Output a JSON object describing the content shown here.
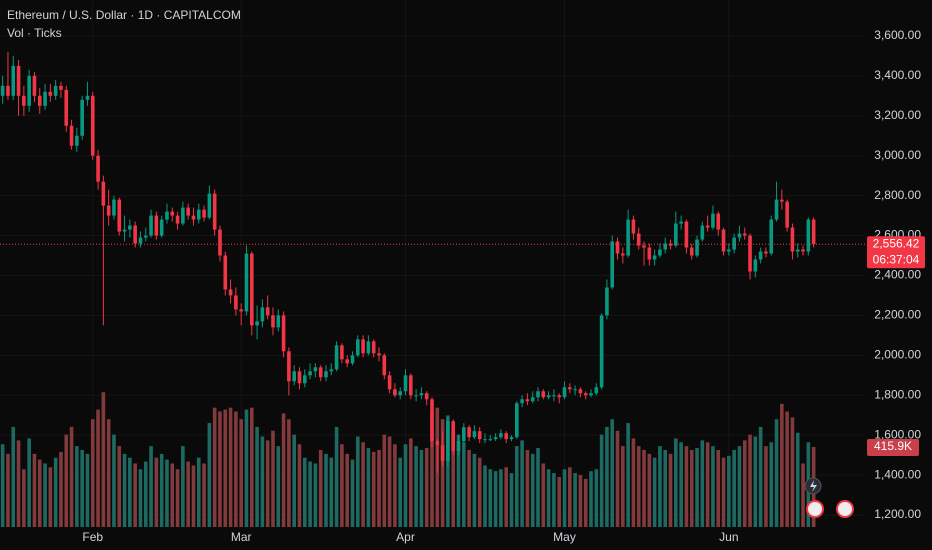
{
  "chart_data": {
    "type": "candlestick",
    "title": "Ethereum / U.S. Dollar · 1D · CAPITALCOM",
    "subtitle": "Vol · Ticks",
    "up_color": "#089981",
    "down_color": "#f23645",
    "volume_up_color": "#1d6a62",
    "volume_down_color": "#833a3c",
    "xlim": [
      -0.5,
      162.5
    ],
    "xticks": [
      {
        "value": 17,
        "label": "Feb"
      },
      {
        "value": 45,
        "label": "Mar"
      },
      {
        "value": 76,
        "label": "Apr"
      },
      {
        "value": 106,
        "label": "May"
      },
      {
        "value": 137,
        "label": "Jun"
      }
    ],
    "ylim": [
      1140,
      3780
    ],
    "yticks": [
      {
        "value": 1200,
        "label": "1,200.00"
      },
      {
        "value": 1400,
        "label": "1,400.00"
      },
      {
        "value": 1600,
        "label": "1,600.00"
      },
      {
        "value": 1800,
        "label": "1,800.00"
      },
      {
        "value": 2000,
        "label": "2,000.00"
      },
      {
        "value": 2200,
        "label": "2,200.00"
      },
      {
        "value": 2400,
        "label": "2,400.00"
      },
      {
        "value": 2600,
        "label": "2,600.00"
      },
      {
        "value": 2800,
        "label": "2,800.00"
      },
      {
        "value": 3000,
        "label": "3,000.00"
      },
      {
        "value": 3200,
        "label": "3,200.00"
      },
      {
        "value": 3400,
        "label": "3,400.00"
      },
      {
        "value": 3600,
        "label": "3,600.00"
      }
    ],
    "grid": true,
    "open": [
      3300,
      3350,
      3300,
      3450,
      3300,
      3250,
      3400,
      3300,
      3250,
      3320,
      3300,
      3350,
      3330,
      3150,
      3050,
      3100,
      3280,
      3300,
      3000,
      2870,
      2750,
      2700,
      2780,
      2620,
      2630,
      2650,
      2560,
      2590,
      2600,
      2700,
      2600,
      2680,
      2720,
      2700,
      2660,
      2740,
      2700,
      2680,
      2730,
      2690,
      2810,
      2630,
      2500,
      2330,
      2300,
      2230,
      2220,
      2510,
      2150,
      2170,
      2240,
      2200,
      2140,
      2200,
      2020,
      1870,
      1920,
      1860,
      1900,
      1920,
      1940,
      1890,
      1920,
      1930,
      2050,
      1980,
      1960,
      2000,
      2080,
      2010,
      2070,
      2010,
      2000,
      1900,
      1830,
      1800,
      1820,
      1900,
      1800,
      1800,
      1810,
      1780,
      1570,
      1550,
      1470,
      1670,
      1520,
      1570,
      1640,
      1590,
      1620,
      1580,
      1580,
      1580,
      1590,
      1610,
      1580,
      1590,
      1760,
      1780,
      1770,
      1790,
      1820,
      1790,
      1800,
      1800,
      1790,
      1840,
      1830,
      1830,
      1810,
      1800,
      1810,
      1840,
      2200,
      2340,
      2570,
      2510,
      2500,
      2680,
      2610,
      2550,
      2540,
      2480,
      2500,
      2530,
      2560,
      2550,
      2660,
      2670,
      2540,
      2500,
      2580,
      2650,
      2640,
      2710,
      2630,
      2520,
      2530,
      2590,
      2610,
      2600,
      2420,
      2480,
      2520,
      2510,
      2680,
      2780,
      2770,
      2640,
      2520,
      2530,
      2520,
      2680
    ],
    "high": [
      3400,
      3520,
      3500,
      3480,
      3350,
      3430,
      3420,
      3340,
      3360,
      3360,
      3380,
      3370,
      3350,
      3180,
      3140,
      3300,
      3370,
      3320,
      3030,
      2900,
      2830,
      2800,
      2790,
      2700,
      2680,
      2670,
      2620,
      2640,
      2730,
      2720,
      2700,
      2760,
      2740,
      2720,
      2770,
      2760,
      2740,
      2760,
      2750,
      2850,
      2830,
      2650,
      2520,
      2380,
      2340,
      2260,
      2550,
      2520,
      2250,
      2280,
      2300,
      2240,
      2230,
      2220,
      2040,
      1950,
      1940,
      1930,
      1960,
      1960,
      1950,
      1950,
      1960,
      2070,
      2060,
      2000,
      2020,
      2100,
      2100,
      2100,
      2080,
      2040,
      2010,
      1920,
      1860,
      1840,
      1930,
      1910,
      1830,
      1840,
      1820,
      1790,
      1580,
      1620,
      1690,
      1680,
      1600,
      1660,
      1650,
      1650,
      1640,
      1610,
      1600,
      1610,
      1630,
      1620,
      1600,
      1770,
      1800,
      1810,
      1820,
      1840,
      1830,
      1820,
      1830,
      1810,
      1870,
      1860,
      1850,
      1840,
      1820,
      1830,
      1860,
      2210,
      2380,
      2600,
      2590,
      2540,
      2730,
      2700,
      2640,
      2570,
      2560,
      2530,
      2560,
      2590,
      2580,
      2720,
      2700,
      2680,
      2560,
      2600,
      2670,
      2700,
      2750,
      2720,
      2640,
      2560,
      2610,
      2650,
      2640,
      2610,
      2500,
      2540,
      2540,
      2700,
      2870,
      2830,
      2780,
      2660,
      2560,
      2550,
      2690,
      2690
    ],
    "low": [
      3260,
      3280,
      3280,
      3200,
      3200,
      3220,
      3270,
      3210,
      3230,
      3270,
      3280,
      3290,
      3120,
      3030,
      3020,
      3080,
      3250,
      2980,
      2830,
      2150,
      2650,
      2680,
      2600,
      2570,
      2590,
      2540,
      2540,
      2570,
      2590,
      2580,
      2590,
      2660,
      2670,
      2630,
      2650,
      2680,
      2650,
      2660,
      2670,
      2680,
      2600,
      2470,
      2300,
      2260,
      2200,
      2150,
      2200,
      2100,
      2080,
      2140,
      2180,
      2100,
      2120,
      1990,
      1800,
      1850,
      1830,
      1840,
      1880,
      1890,
      1870,
      1870,
      1900,
      1920,
      1960,
      1940,
      1950,
      1990,
      1990,
      2000,
      1990,
      1970,
      1880,
      1810,
      1790,
      1780,
      1800,
      1780,
      1770,
      1780,
      1750,
      1540,
      1410,
      1440,
      1440,
      1500,
      1500,
      1560,
      1570,
      1580,
      1560,
      1560,
      1570,
      1570,
      1580,
      1560,
      1570,
      1580,
      1740,
      1750,
      1760,
      1770,
      1780,
      1780,
      1770,
      1760,
      1780,
      1810,
      1800,
      1790,
      1780,
      1790,
      1800,
      1830,
      2180,
      2330,
      2480,
      2460,
      2490,
      2580,
      2530,
      2450,
      2450,
      2450,
      2490,
      2510,
      2530,
      2540,
      2630,
      2510,
      2480,
      2490,
      2570,
      2620,
      2630,
      2600,
      2500,
      2500,
      2510,
      2570,
      2580,
      2380,
      2390,
      2460,
      2490,
      2500,
      2670,
      2730,
      2620,
      2480,
      2490,
      2500,
      2500,
      2540
    ],
    "close": [
      3350,
      3300,
      3450,
      3300,
      3250,
      3400,
      3300,
      3250,
      3320,
      3300,
      3350,
      3330,
      3150,
      3050,
      3100,
      3280,
      3300,
      3000,
      2870,
      2750,
      2700,
      2780,
      2620,
      2630,
      2650,
      2560,
      2590,
      2600,
      2700,
      2600,
      2680,
      2720,
      2700,
      2660,
      2740,
      2700,
      2680,
      2730,
      2690,
      2810,
      2630,
      2500,
      2330,
      2300,
      2230,
      2220,
      2510,
      2150,
      2170,
      2240,
      2200,
      2140,
      2200,
      2020,
      1870,
      1920,
      1860,
      1900,
      1920,
      1940,
      1890,
      1920,
      1930,
      2050,
      1980,
      1960,
      2000,
      2080,
      2010,
      2070,
      2010,
      2000,
      1900,
      1830,
      1800,
      1820,
      1900,
      1800,
      1800,
      1810,
      1780,
      1570,
      1550,
      1470,
      1670,
      1520,
      1570,
      1640,
      1590,
      1620,
      1580,
      1580,
      1580,
      1590,
      1610,
      1580,
      1590,
      1760,
      1780,
      1770,
      1790,
      1820,
      1790,
      1800,
      1800,
      1790,
      1840,
      1830,
      1830,
      1810,
      1800,
      1810,
      1840,
      2200,
      2340,
      2570,
      2510,
      2500,
      2680,
      2610,
      2550,
      2540,
      2480,
      2500,
      2530,
      2560,
      2550,
      2660,
      2670,
      2540,
      2500,
      2580,
      2650,
      2640,
      2710,
      2630,
      2520,
      2530,
      2590,
      2610,
      2600,
      2420,
      2480,
      2520,
      2510,
      2680,
      2780,
      2770,
      2640,
      2520,
      2530,
      2520,
      2680,
      2556.42
    ],
    "volume": {
      "vlim": [
        0,
        2000000
      ],
      "values": [
        430000,
        380000,
        520000,
        450000,
        300000,
        460000,
        380000,
        350000,
        330000,
        310000,
        360000,
        390000,
        480000,
        520000,
        420000,
        400000,
        380000,
        560000,
        610000,
        700000,
        560000,
        480000,
        420000,
        380000,
        360000,
        330000,
        300000,
        340000,
        420000,
        360000,
        380000,
        350000,
        330000,
        300000,
        420000,
        340000,
        320000,
        360000,
        330000,
        540000,
        620000,
        600000,
        610000,
        620000,
        600000,
        560000,
        610000,
        620000,
        520000,
        470000,
        450000,
        500000,
        420000,
        590000,
        560000,
        480000,
        430000,
        360000,
        340000,
        330000,
        400000,
        380000,
        360000,
        520000,
        430000,
        380000,
        350000,
        470000,
        440000,
        410000,
        390000,
        400000,
        480000,
        470000,
        430000,
        360000,
        430000,
        460000,
        420000,
        400000,
        410000,
        600000,
        620000,
        560000,
        580000,
        510000,
        480000,
        440000,
        400000,
        380000,
        360000,
        320000,
        300000,
        290000,
        300000,
        310000,
        280000,
        420000,
        450000,
        400000,
        380000,
        410000,
        330000,
        300000,
        280000,
        260000,
        300000,
        310000,
        280000,
        270000,
        250000,
        290000,
        300000,
        480000,
        520000,
        560000,
        500000,
        420000,
        540000,
        460000,
        420000,
        400000,
        380000,
        360000,
        420000,
        400000,
        380000,
        460000,
        440000,
        420000,
        400000,
        410000,
        450000,
        440000,
        420000,
        400000,
        360000,
        370000,
        400000,
        420000,
        450000,
        480000,
        470000,
        520000,
        420000,
        440000,
        560000,
        640000,
        600000,
        570000,
        490000,
        330000,
        440000,
        415900
      ],
      "last_label": "415.9K"
    },
    "last_price_label": "2,556.42",
    "countdown": "06:37:04"
  }
}
